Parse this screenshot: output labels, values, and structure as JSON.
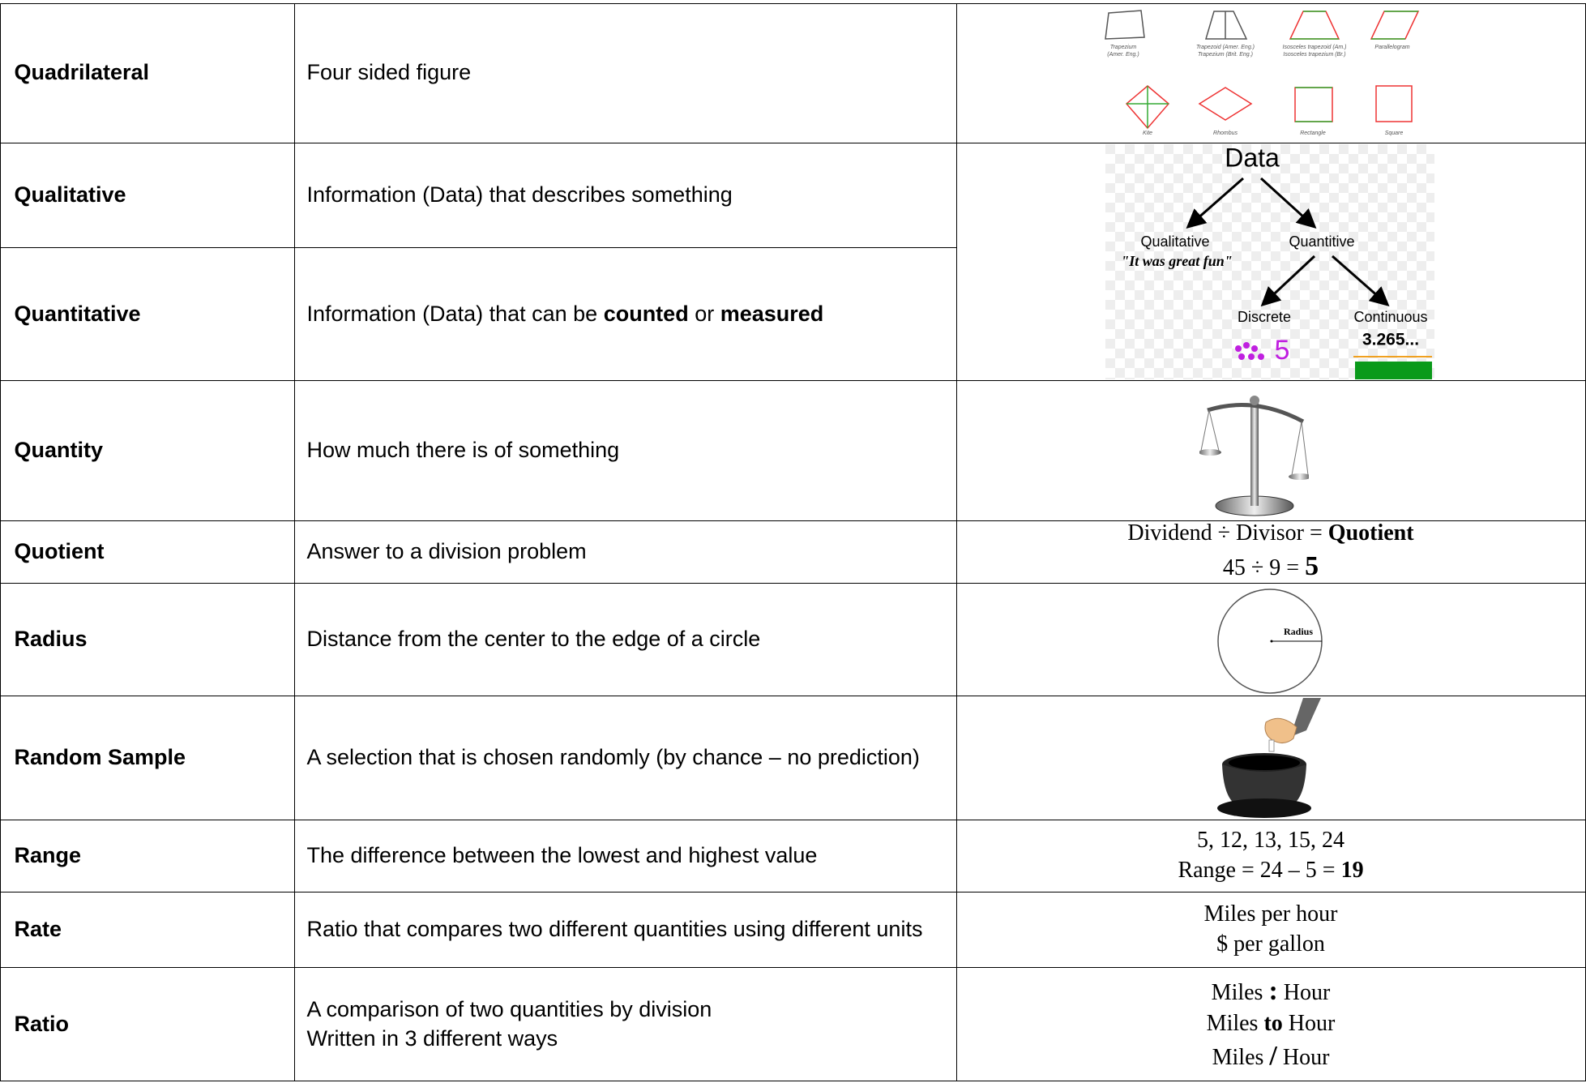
{
  "rows": [
    {
      "term": "Quadrilateral",
      "definition": [
        [
          "Four sided figure"
        ]
      ],
      "figure": {
        "labels": [
          [
            "Trapezium",
            "(Amer. Eng.)"
          ],
          [
            "Trapezoid (Amer. Eng.)",
            "Trapezium (Brit. Eng.)"
          ],
          [
            "Isosceles trapezoid (Am.)",
            "Isosceles trapezium (Br.)"
          ],
          [
            "Parallelogram"
          ],
          [
            "Kite"
          ],
          [
            "Rhombus"
          ],
          [
            "Rectangle"
          ],
          [
            "Square"
          ]
        ]
      }
    },
    {
      "term": "Qualitative",
      "definition": [
        [
          "Information (Data) that describes something"
        ]
      ]
    },
    {
      "term": "Quantitative",
      "definition": [
        [
          "Information (Data) that can be ",
          "counted",
          " or ",
          "measured"
        ]
      ]
    },
    {
      "term": "Quantity",
      "definition": [
        [
          "How much there is of something"
        ]
      ]
    },
    {
      "term": "Quotient",
      "definition": [
        [
          "Answer to a division problem"
        ]
      ],
      "example": [
        [
          "Dividend ÷ Divisor = ",
          "Quotient"
        ],
        [
          "45 ÷ 9 = ",
          "5"
        ]
      ]
    },
    {
      "term": "Radius",
      "definition": [
        [
          "Distance from the center to the edge of a circle"
        ]
      ],
      "figure": {
        "label": "Radius"
      }
    },
    {
      "term": "Random Sample",
      "definition": [
        [
          "A selection that is chosen randomly (by chance – no prediction)"
        ]
      ]
    },
    {
      "term": "Range",
      "definition": [
        [
          "The difference between the lowest and highest value"
        ]
      ],
      "example": [
        [
          "5, 12, 13, 15, 24"
        ],
        [
          "Range = 24 – 5 = ",
          "19"
        ]
      ]
    },
    {
      "term": "Rate",
      "definition": [
        [
          "Ratio that compares two different quantities using different units"
        ]
      ],
      "example": [
        [
          "Miles per hour"
        ],
        [
          "$ per gallon"
        ]
      ]
    },
    {
      "term": "Ratio",
      "definition": [
        [
          "A comparison of two quantities by division"
        ],
        [
          "Written in 3 different ways"
        ]
      ],
      "example": [
        [
          "Miles ",
          ":",
          " Hour"
        ],
        [
          "Miles ",
          "to",
          " Hour"
        ],
        [
          "Miles ",
          "/",
          " Hour"
        ]
      ]
    }
  ],
  "data_diagram": {
    "root": "Data",
    "qualitative": "Qualitative",
    "quantitative": "Quantitive",
    "quote": "\"It was great fun\"",
    "discrete": "Discrete",
    "continuous": "Continuous",
    "discrete_example": "5",
    "continuous_example": "3.265..."
  }
}
